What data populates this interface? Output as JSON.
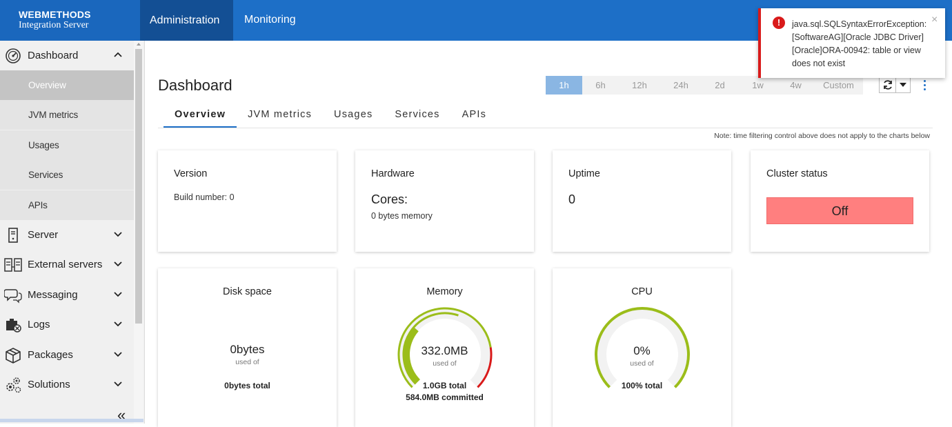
{
  "brand": {
    "line1": "WEBMETHODS",
    "line2": "Integration Server"
  },
  "top_tabs": [
    {
      "label": "Administration",
      "active": true
    },
    {
      "label": "Monitoring",
      "active": false
    }
  ],
  "sidebar": {
    "groups": [
      {
        "label": "Dashboard",
        "icon": "dashboard-gauge-icon",
        "expanded": true
      },
      {
        "label": "Server",
        "icon": "server-icon"
      },
      {
        "label": "External servers",
        "icon": "external-servers-icon"
      },
      {
        "label": "Messaging",
        "icon": "messaging-icon"
      },
      {
        "label": "Logs",
        "icon": "logs-icon"
      },
      {
        "label": "Packages",
        "icon": "package-icon"
      },
      {
        "label": "Solutions",
        "icon": "solutions-icon"
      }
    ],
    "dashboard_items": [
      {
        "label": "Overview",
        "active": true
      },
      {
        "label": "JVM metrics"
      },
      {
        "label": "Usages"
      },
      {
        "label": "Services"
      },
      {
        "label": "APIs"
      }
    ],
    "collapse_glyph": "«"
  },
  "main": {
    "title": "Dashboard",
    "time_filters": [
      {
        "label": "1h",
        "active": true
      },
      {
        "label": "6h"
      },
      {
        "label": "12h"
      },
      {
        "label": "24h"
      },
      {
        "label": "2d"
      },
      {
        "label": "1w"
      },
      {
        "label": "4w"
      },
      {
        "label": "Custom"
      }
    ],
    "sub_tabs": [
      {
        "label": "Overview",
        "active": true
      },
      {
        "label": "JVM metrics"
      },
      {
        "label": "Usages"
      },
      {
        "label": "Services"
      },
      {
        "label": "APIs"
      }
    ],
    "note": "Note: time filtering control above does not apply to the charts below",
    "cards": {
      "version": {
        "title": "Version",
        "build": "Build number: 0"
      },
      "hardware": {
        "title": "Hardware",
        "cores": "Cores:",
        "memory": "0 bytes memory"
      },
      "uptime": {
        "title": "Uptime",
        "value": "0"
      },
      "cluster": {
        "title": "Cluster status",
        "status": "Off",
        "status_color": "#ff7f7f"
      },
      "disk": {
        "title": "Disk space",
        "value": "0bytes",
        "sub": "used of",
        "total": "0bytes total",
        "used_fraction": 0
      },
      "memory": {
        "title": "Memory",
        "value": "332.0MB",
        "sub": "used of",
        "total": "1.0GB total",
        "committed": "584.0MB committed",
        "used_fraction": 0.32,
        "committed_fraction": 0.57,
        "gauge_color": "#9bbd1a",
        "warning_color": "#d91a1a"
      },
      "cpu": {
        "title": "CPU",
        "value": "0%",
        "sub": "used of",
        "total": "100% total",
        "used_fraction": 0,
        "gauge_color": "#9bbd1a"
      }
    }
  },
  "toast": {
    "message": "java.sql.SQLSyntaxErrorException: [SoftwareAG][Oracle JDBC Driver][Oracle]ORA-00942: table or view does not exist",
    "close_glyph": "×",
    "error_glyph": "!"
  }
}
